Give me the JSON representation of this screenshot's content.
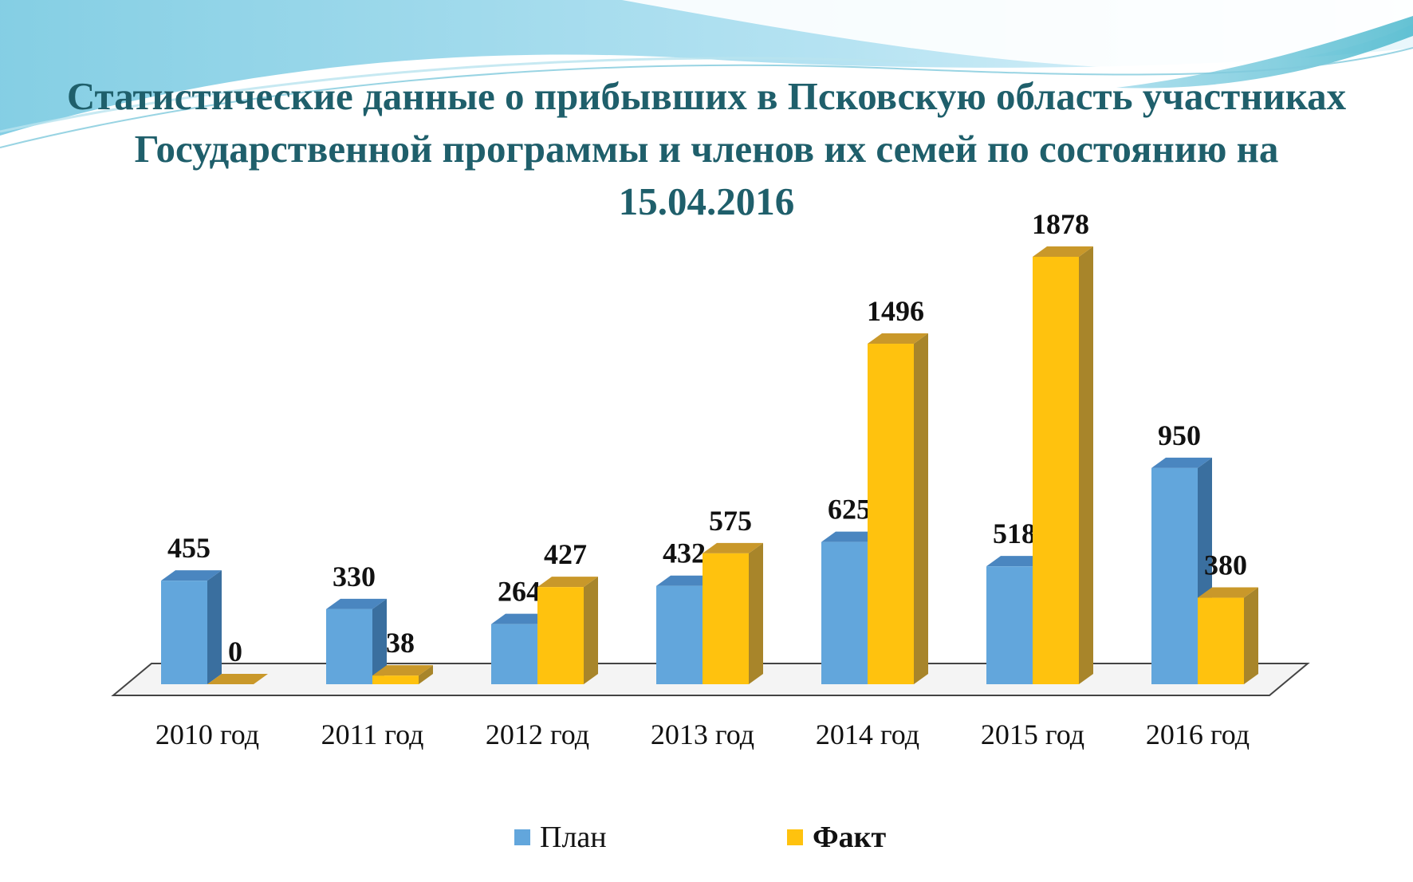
{
  "slide": {
    "title": "Статистические данные о прибывших в Псковскую область участниках Государственной программы и членов их семей по состоянию на 15.04.2016"
  },
  "chart_data": {
    "type": "bar",
    "title": "Статистические данные о прибывших в Псковскую область участниках Государственной программы и членов их семей по состоянию на 15.04.2016",
    "categories": [
      "2010 год",
      "2011 год",
      "2012 год",
      "2013 год",
      "2014 год",
      "2015 год",
      "2016 год"
    ],
    "series": [
      {
        "name": "План",
        "values": [
          455,
          330,
          264,
          432,
          625,
          518,
          950
        ],
        "color": "#62a6dc",
        "side_color": "#3a6f9f",
        "top_color": "#4a86c0"
      },
      {
        "name": "Факт",
        "values": [
          0,
          38,
          427,
          575,
          1496,
          1878,
          380
        ],
        "color": "#ffc20e",
        "side_color": "#a8852a",
        "top_color": "#c9982a"
      }
    ],
    "ylim": [
      0,
      2000
    ],
    "grid": false,
    "legend_position": "bottom",
    "three_d": true
  },
  "legend": {
    "items": [
      "План",
      "Факт"
    ]
  }
}
